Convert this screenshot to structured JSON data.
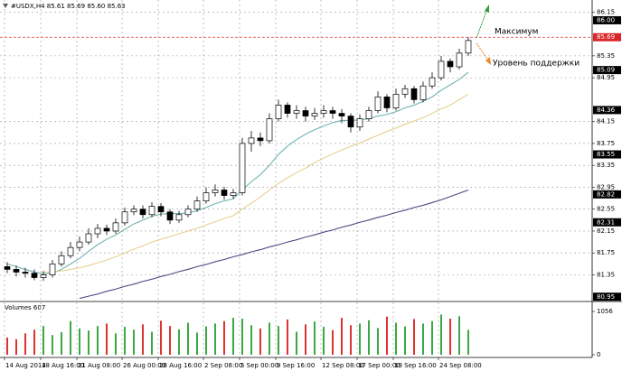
{
  "chart_data": {
    "type": "candlestick",
    "title": "#USDX,H4 85.61 85.69 85.60 85.63",
    "annotations": [
      "Максимум",
      "Уровень поддержки"
    ],
    "up_color": "#ffffff",
    "down_color": "#000000",
    "wick_color": "#000000",
    "categories": [
      "14 Aug 2014",
      null,
      null,
      null,
      "18 Aug 16:00",
      null,
      null,
      null,
      "21 Aug 08:00",
      null,
      null,
      null,
      null,
      "26 Aug 00:00",
      null,
      null,
      null,
      "28 Aug 16:00",
      null,
      null,
      null,
      null,
      "2 Sep 08:00",
      null,
      null,
      null,
      "5 Sep 00:00",
      null,
      null,
      null,
      "9 Sep 16:00",
      null,
      null,
      null,
      null,
      "12 Sep 08:00",
      null,
      null,
      null,
      "17 Sep 00:00",
      null,
      null,
      null,
      "19 Sep 16:00",
      null,
      null,
      null,
      null,
      "24 Sep 08:00",
      null,
      null,
      null
    ],
    "open": [
      81.5,
      81.45,
      81.4,
      81.38,
      81.3,
      81.35,
      81.55,
      81.7,
      81.85,
      81.95,
      82.1,
      82.2,
      82.15,
      82.3,
      82.5,
      82.55,
      82.45,
      82.6,
      82.5,
      82.35,
      82.45,
      82.55,
      82.7,
      82.85,
      82.9,
      82.8,
      82.85,
      83.75,
      83.85,
      83.8,
      84.2,
      84.45,
      84.3,
      84.35,
      84.25,
      84.3,
      84.35,
      84.3,
      84.25,
      84.05,
      84.2,
      84.35,
      84.6,
      84.4,
      84.65,
      84.75,
      84.55,
      84.8,
      84.95,
      85.25,
      85.15,
      85.4
    ],
    "high": [
      81.58,
      81.52,
      81.48,
      81.45,
      81.42,
      81.62,
      81.78,
      81.95,
      82.05,
      82.2,
      82.28,
      82.27,
      82.38,
      82.58,
      82.62,
      82.62,
      82.68,
      82.66,
      82.55,
      82.52,
      82.62,
      82.78,
      82.95,
      83.0,
      82.96,
      82.92,
      83.85,
      83.98,
      83.95,
      84.3,
      84.55,
      84.5,
      84.45,
      84.42,
      84.4,
      84.45,
      84.42,
      84.38,
      84.3,
      84.28,
      84.42,
      84.7,
      84.65,
      84.75,
      84.82,
      84.8,
      84.88,
      85.05,
      85.35,
      85.3,
      85.48,
      85.69
    ],
    "low": [
      81.38,
      81.32,
      81.3,
      81.25,
      81.24,
      81.3,
      81.5,
      81.65,
      81.78,
      81.9,
      82.02,
      82.08,
      82.1,
      82.25,
      82.44,
      82.38,
      82.4,
      82.42,
      82.28,
      82.3,
      82.4,
      82.5,
      82.65,
      82.78,
      82.72,
      82.74,
      82.8,
      83.6,
      83.7,
      83.75,
      84.15,
      84.22,
      84.2,
      84.15,
      84.18,
      84.22,
      84.2,
      84.12,
      83.95,
      83.98,
      84.15,
      84.3,
      84.32,
      84.35,
      84.58,
      84.48,
      84.5,
      84.75,
      84.9,
      85.05,
      85.1,
      85.35
    ],
    "close": [
      81.45,
      81.4,
      81.38,
      81.3,
      81.35,
      81.55,
      81.7,
      81.85,
      81.95,
      82.1,
      82.2,
      82.15,
      82.3,
      82.5,
      82.55,
      82.45,
      82.6,
      82.5,
      82.35,
      82.45,
      82.55,
      82.7,
      82.85,
      82.9,
      82.8,
      82.85,
      83.75,
      83.85,
      83.8,
      84.2,
      84.45,
      84.3,
      84.35,
      84.25,
      84.3,
      84.35,
      84.3,
      84.25,
      84.05,
      84.2,
      84.35,
      84.6,
      84.4,
      84.65,
      84.75,
      84.55,
      84.8,
      84.95,
      85.25,
      85.15,
      85.4,
      85.63
    ],
    "ma_lines": [
      {
        "color": "#6fb3b0",
        "values": [
          81.55,
          81.5,
          81.45,
          81.4,
          81.37,
          81.38,
          81.45,
          81.55,
          81.65,
          81.78,
          81.9,
          82.0,
          82.08,
          82.18,
          82.28,
          82.35,
          82.42,
          82.46,
          82.47,
          82.47,
          82.48,
          82.52,
          82.58,
          82.65,
          82.7,
          82.74,
          82.9,
          83.05,
          83.18,
          83.35,
          83.55,
          83.7,
          83.82,
          83.92,
          84.0,
          84.07,
          84.13,
          84.17,
          84.17,
          84.18,
          84.2,
          84.25,
          84.28,
          84.33,
          84.4,
          84.45,
          84.52,
          84.6,
          84.72,
          84.82,
          84.92,
          85.05
        ]
      },
      {
        "color": "#e6d18f",
        "values": [
          null,
          null,
          null,
          null,
          81.4,
          81.4,
          81.42,
          81.45,
          81.48,
          81.52,
          81.57,
          81.62,
          81.68,
          81.75,
          81.82,
          81.88,
          81.95,
          82.0,
          82.05,
          82.1,
          82.15,
          82.2,
          82.26,
          82.32,
          82.38,
          82.43,
          82.55,
          82.66,
          82.77,
          82.9,
          83.02,
          83.12,
          83.22,
          83.3,
          83.4,
          83.48,
          83.56,
          83.63,
          83.7,
          83.76,
          83.83,
          83.9,
          83.97,
          84.03,
          84.1,
          84.16,
          84.22,
          84.3,
          84.38,
          84.45,
          84.55,
          84.65
        ]
      },
      {
        "color": "#4b4a85",
        "values": [
          null,
          null,
          null,
          null,
          null,
          null,
          null,
          null,
          80.92,
          80.96,
          81.0,
          81.05,
          81.09,
          81.14,
          81.18,
          81.23,
          81.27,
          81.32,
          81.36,
          81.41,
          81.45,
          81.5,
          81.54,
          81.59,
          81.63,
          81.68,
          81.72,
          81.77,
          81.81,
          81.86,
          81.9,
          81.95,
          81.99,
          82.04,
          82.08,
          82.13,
          82.17,
          82.22,
          82.26,
          82.31,
          82.35,
          82.4,
          82.44,
          82.49,
          82.53,
          82.58,
          82.62,
          82.67,
          82.72,
          82.78,
          82.84,
          82.9
        ]
      }
    ],
    "ylim": [
      80.88,
      86.37
    ],
    "yticks": [
      86.15,
      85.35,
      84.95,
      84.15,
      83.75,
      83.35,
      82.95,
      82.55,
      82.15,
      81.75,
      81.35
    ],
    "levels": [
      {
        "value": 86,
        "label": "86.00"
      },
      {
        "value": 85.09,
        "label": "85.09"
      },
      {
        "value": 84.36,
        "label": "84.36"
      },
      {
        "value": 83.55,
        "label": "83.55"
      },
      {
        "value": 82.82,
        "label": "82.82"
      },
      {
        "value": 82.31,
        "label": "82.31"
      },
      {
        "value": 80.95,
        "label": "80.95"
      }
    ],
    "current_price": {
      "value": 85.69,
      "label": "85.69"
    },
    "grid": true,
    "volume_label": "Volumes 607",
    "volumes": [
      420,
      380,
      520,
      610,
      700,
      480,
      550,
      820,
      640,
      590,
      700,
      760,
      520,
      680,
      610,
      740,
      560,
      830,
      700,
      620,
      780,
      540,
      690,
      760,
      820,
      900,
      880,
      720,
      640,
      780,
      700,
      860,
      560,
      740,
      810,
      680,
      600,
      900,
      720,
      760,
      840,
      650,
      930,
      780,
      690,
      870,
      760,
      820,
      980,
      880,
      940,
      607
    ],
    "volume_ylim": [
      0,
      1056
    ],
    "volume_yticks": [
      1056,
      0
    ]
  }
}
